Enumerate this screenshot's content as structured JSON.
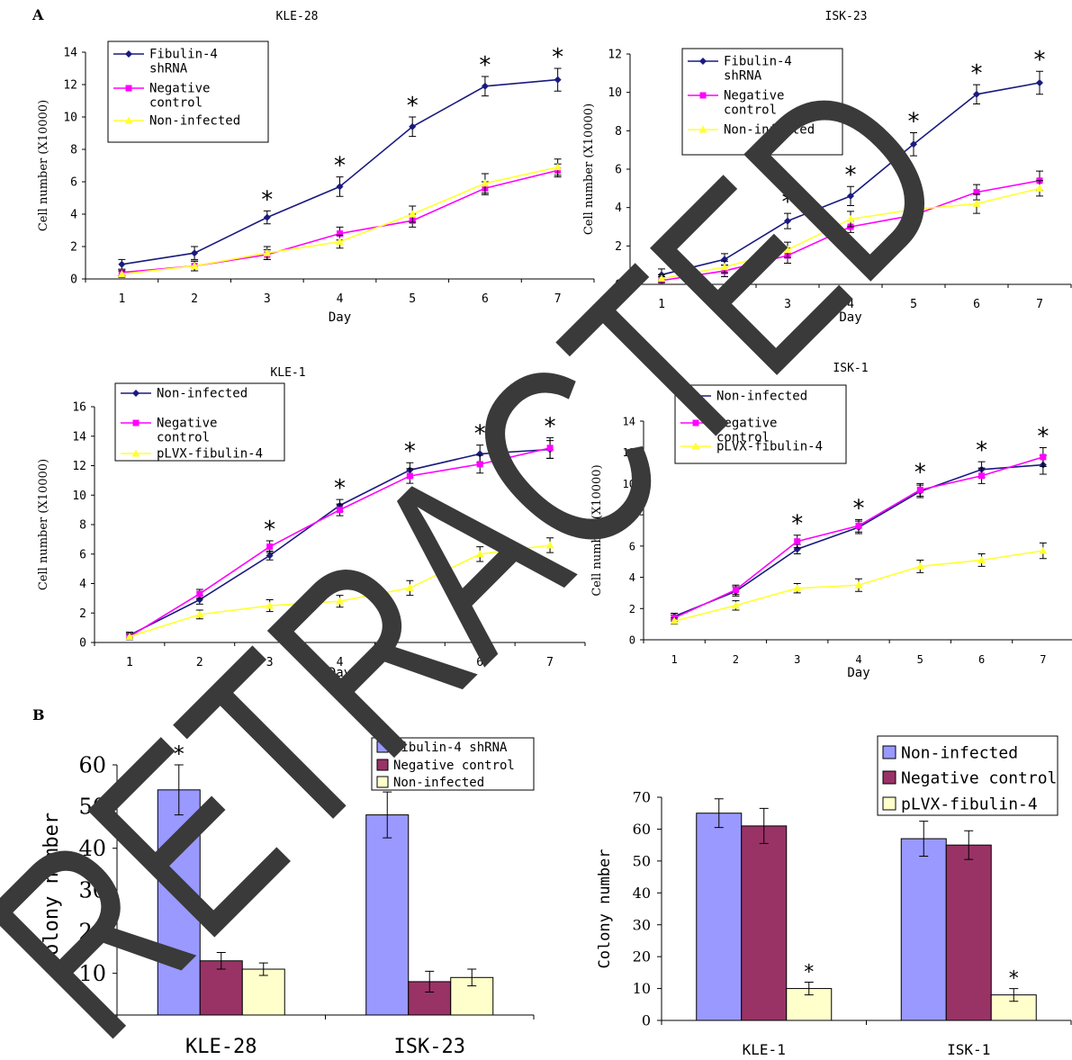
{
  "panel_labels": [
    "A",
    "B"
  ],
  "watermark": "RETRACTED",
  "colors": {
    "navy": "#1a1a80",
    "magenta": "#ff00ff",
    "yellow": "#ffff33",
    "bar_blue": "#9999ff",
    "bar_maroon": "#993366",
    "bar_cream": "#ffffcc",
    "watermark": "#3a3a3a"
  },
  "chart_data": [
    {
      "type": "line",
      "title": "KLE-28",
      "xlabel": "Day",
      "ylabel": "Cell number (X10000)",
      "x": [
        1,
        2,
        3,
        4,
        5,
        6,
        7
      ],
      "ylim": [
        0,
        14
      ],
      "yticks": [
        0,
        2,
        4,
        6,
        8,
        10,
        12,
        14
      ],
      "legend_position": "top-left",
      "series": [
        {
          "name": "Fibulin-4 shRNA",
          "color": "#1a1a80",
          "marker": "diamond",
          "values": [
            0.9,
            1.6,
            3.8,
            5.7,
            9.4,
            11.9,
            12.3
          ],
          "errors": [
            0.3,
            0.4,
            0.4,
            0.6,
            0.6,
            0.6,
            0.7
          ]
        },
        {
          "name": "Negative control",
          "color": "#ff00ff",
          "marker": "square",
          "values": [
            0.4,
            0.8,
            1.5,
            2.8,
            3.6,
            5.6,
            6.7
          ],
          "errors": [
            0.2,
            0.3,
            0.3,
            0.4,
            0.4,
            0.4,
            0.4
          ]
        },
        {
          "name": "Non-infected",
          "color": "#ffff33",
          "marker": "triangle",
          "values": [
            0.3,
            0.8,
            1.6,
            2.3,
            4.0,
            5.9,
            6.9
          ],
          "errors": [
            0.2,
            0.3,
            0.4,
            0.4,
            0.5,
            0.6,
            0.5
          ]
        }
      ],
      "significance": [
        3,
        4,
        5,
        6,
        7
      ]
    },
    {
      "type": "line",
      "title": "ISK-23",
      "xlabel": "Day",
      "ylabel": "Cell number (X10000)",
      "x": [
        1,
        2,
        3,
        4,
        5,
        6,
        7
      ],
      "ylim": [
        0,
        12
      ],
      "yticks": [
        0,
        2,
        4,
        6,
        8,
        10,
        12
      ],
      "legend_position": "top-left",
      "series": [
        {
          "name": "Fibulin-4 shRNA",
          "color": "#1a1a80",
          "marker": "diamond",
          "values": [
            0.5,
            1.3,
            3.3,
            4.6,
            7.3,
            9.9,
            10.5
          ],
          "errors": [
            0.3,
            0.3,
            0.4,
            0.5,
            0.6,
            0.5,
            0.6
          ]
        },
        {
          "name": "Negative control",
          "color": "#ff00ff",
          "marker": "square",
          "values": [
            0.2,
            0.7,
            1.5,
            3.0,
            3.6,
            4.8,
            5.4
          ],
          "errors": [
            0.2,
            0.3,
            0.4,
            0.3,
            0.4,
            0.4,
            0.5
          ]
        },
        {
          "name": "Non-infected",
          "color": "#ffff33",
          "marker": "triangle",
          "values": [
            0.3,
            0.9,
            1.8,
            3.4,
            3.9,
            4.2,
            5.0
          ],
          "errors": [
            0.2,
            0.3,
            0.4,
            0.4,
            0.5,
            0.5,
            0.4
          ]
        }
      ],
      "significance": [
        3,
        4,
        5,
        6,
        7
      ]
    },
    {
      "type": "line",
      "title": "KLE-1",
      "xlabel": "Day",
      "ylabel": "Cell number (X10000)",
      "x": [
        1,
        2,
        3,
        4,
        5,
        6,
        7
      ],
      "ylim": [
        0,
        16
      ],
      "yticks": [
        0,
        2,
        4,
        6,
        8,
        10,
        12,
        14,
        16
      ],
      "legend_position": "top-left",
      "series": [
        {
          "name": "Non-infected",
          "color": "#1a1a80",
          "marker": "diamond",
          "values": [
            0.5,
            2.9,
            5.9,
            9.3,
            11.7,
            12.8,
            13.1
          ],
          "errors": [
            0.2,
            0.3,
            0.3,
            0.4,
            0.5,
            0.6,
            0.6
          ]
        },
        {
          "name": "Negative control",
          "color": "#ff00ff",
          "marker": "square",
          "values": [
            0.4,
            3.3,
            6.5,
            9.0,
            11.3,
            12.1,
            13.2
          ],
          "errors": [
            0.2,
            0.3,
            0.4,
            0.4,
            0.5,
            0.6,
            0.7
          ]
        },
        {
          "name": "pLVX-fibulin-4",
          "color": "#ffff33",
          "marker": "triangle",
          "values": [
            0.4,
            1.9,
            2.5,
            2.8,
            3.7,
            6.0,
            6.6
          ],
          "errors": [
            0.2,
            0.3,
            0.4,
            0.4,
            0.5,
            0.5,
            0.5
          ]
        }
      ],
      "significance": [
        3,
        4,
        5,
        6,
        7
      ]
    },
    {
      "type": "line",
      "title": "ISK-1",
      "xlabel": "Day",
      "ylabel": "Cell number (X10000)",
      "x": [
        1,
        2,
        3,
        4,
        5,
        6,
        7
      ],
      "ylim": [
        0,
        14
      ],
      "yticks": [
        0,
        2,
        4,
        6,
        8,
        10,
        12,
        14
      ],
      "legend_position": "top-left",
      "series": [
        {
          "name": "Non-infected",
          "color": "#1a1a80",
          "marker": "diamond",
          "values": [
            1.5,
            3.1,
            5.8,
            7.2,
            9.5,
            10.9,
            11.2
          ],
          "errors": [
            0.2,
            0.3,
            0.3,
            0.4,
            0.4,
            0.5,
            0.6
          ]
        },
        {
          "name": "Negative control",
          "color": "#ff00ff",
          "marker": "square",
          "values": [
            1.4,
            3.2,
            6.3,
            7.3,
            9.6,
            10.5,
            11.7
          ],
          "errors": [
            0.2,
            0.3,
            0.4,
            0.4,
            0.4,
            0.5,
            0.6
          ]
        },
        {
          "name": "pLVX-fibulin-4",
          "color": "#ffff33",
          "marker": "triangle",
          "values": [
            1.2,
            2.2,
            3.3,
            3.5,
            4.7,
            5.1,
            5.7
          ],
          "errors": [
            0.2,
            0.3,
            0.3,
            0.4,
            0.4,
            0.4,
            0.5
          ]
        }
      ],
      "significance": [
        3,
        4,
        5,
        6,
        7
      ]
    },
    {
      "type": "bar",
      "title": "",
      "xlabel": "",
      "ylabel": "Colony number",
      "categories": [
        "KLE-28",
        "ISK-23"
      ],
      "ylim": [
        0,
        60
      ],
      "yticks": [
        0,
        10,
        20,
        30,
        40,
        50,
        60
      ],
      "legend_position": "top-right",
      "series": [
        {
          "name": "Fibulin-4 shRNA",
          "color": "#9999ff",
          "values": [
            54,
            48
          ],
          "errors": [
            6,
            5.5
          ]
        },
        {
          "name": "Negative control",
          "color": "#993366",
          "values": [
            13,
            8
          ],
          "errors": [
            2,
            2.5
          ]
        },
        {
          "name": "Non-infected",
          "color": "#ffffcc",
          "values": [
            11,
            9
          ],
          "errors": [
            1.5,
            2
          ]
        }
      ],
      "significance": [
        [
          0,
          0
        ],
        [
          1,
          0
        ]
      ]
    },
    {
      "type": "bar",
      "title": "",
      "xlabel": "",
      "ylabel": "Colony number",
      "categories": [
        "KLE-1",
        "ISK-1"
      ],
      "ylim": [
        0,
        70
      ],
      "yticks": [
        0,
        10,
        20,
        30,
        40,
        50,
        60,
        70
      ],
      "legend_position": "top-right",
      "series": [
        {
          "name": "Non-infected",
          "color": "#9999ff",
          "values": [
            65,
            57
          ],
          "errors": [
            4.5,
            5.5
          ]
        },
        {
          "name": "Negative control",
          "color": "#993366",
          "values": [
            61,
            55
          ],
          "errors": [
            5.5,
            4.5
          ]
        },
        {
          "name": "pLVX-fibulin-4",
          "color": "#ffffcc",
          "values": [
            10,
            8
          ],
          "errors": [
            2,
            2
          ]
        }
      ],
      "significance": [
        [
          0,
          2
        ],
        [
          1,
          2
        ]
      ]
    }
  ]
}
